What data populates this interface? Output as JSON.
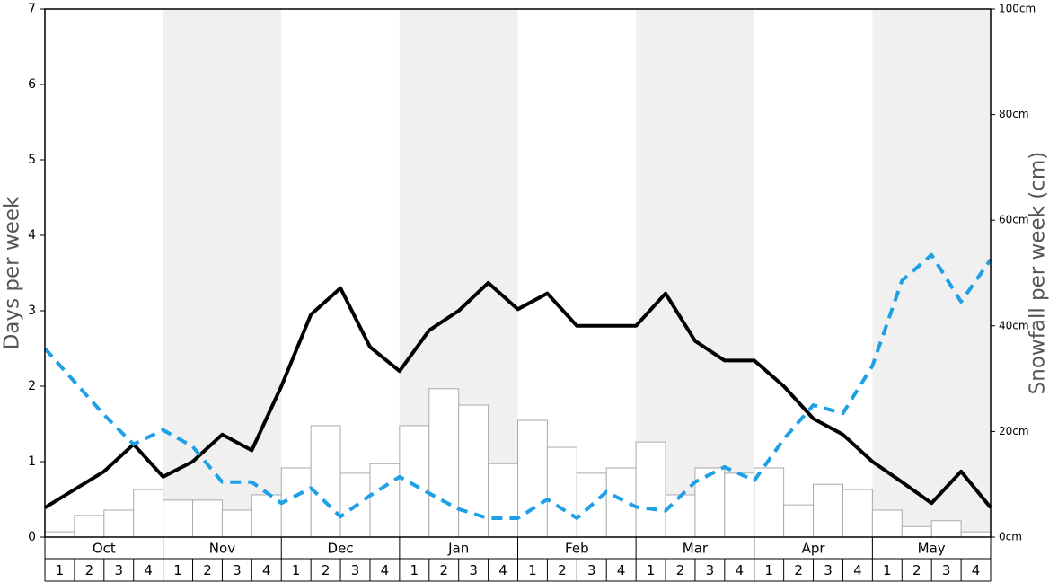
{
  "chart_data": {
    "type": "combo",
    "ylabel": "Days per week",
    "y2label": "Snowfall per week (cm)",
    "ylim": [
      0,
      7
    ],
    "yticks": [
      0,
      1,
      2,
      3,
      4,
      5,
      6,
      7
    ],
    "y2lim": [
      0,
      100
    ],
    "y2ticks": [
      {
        "value": 0,
        "label": "0cm"
      },
      {
        "value": 20,
        "label": "20cm"
      },
      {
        "value": 40,
        "label": "40cm"
      },
      {
        "value": 60,
        "label": "60cm"
      },
      {
        "value": 80,
        "label": "80cm"
      },
      {
        "value": 100,
        "label": "100cm"
      }
    ],
    "xlim": [
      0,
      32
    ],
    "months": [
      "Oct",
      "Nov",
      "Dec",
      "Jan",
      "Feb",
      "Mar",
      "Apr",
      "May"
    ],
    "categories": [
      "1",
      "2",
      "3",
      "4",
      "1",
      "2",
      "3",
      "4",
      "1",
      "2",
      "3",
      "4",
      "1",
      "2",
      "3",
      "4",
      "1",
      "2",
      "3",
      "4",
      "1",
      "2",
      "3",
      "4",
      "1",
      "2",
      "3",
      "4",
      "1",
      "2",
      "3",
      "4"
    ],
    "series": [
      {
        "type": "bar",
        "axis": "y2",
        "color": "#ffffff",
        "edge": "#aaaaaa",
        "values": [
          1.0,
          4.1,
          5.1,
          9.0,
          7.0,
          7.0,
          5.1,
          8.0,
          13.1,
          21.1,
          12.1,
          13.9,
          21.1,
          28.1,
          25.0,
          13.9,
          22.1,
          17.0,
          12.1,
          13.1,
          18.0,
          8.0,
          13.1,
          12.1,
          13.1,
          6.1,
          10.0,
          9.0,
          5.1,
          2.0,
          3.1,
          1.0
        ]
      },
      {
        "type": "line",
        "axis": "y",
        "color": "#000000",
        "dash": false,
        "x": [
          0,
          1,
          2,
          3,
          4,
          5,
          6,
          7,
          8,
          9,
          10,
          11,
          12,
          13,
          14,
          15,
          16,
          17,
          18,
          19,
          20,
          21,
          22,
          23,
          24,
          25,
          26,
          27,
          28,
          29,
          30,
          31,
          32
        ],
        "values": [
          0.39,
          0.63,
          0.87,
          1.23,
          0.8,
          1.0,
          1.36,
          1.15,
          2.0,
          2.95,
          3.3,
          2.52,
          2.2,
          2.74,
          3.0,
          3.37,
          3.02,
          3.23,
          2.8,
          2.8,
          2.8,
          3.23,
          2.6,
          2.34,
          2.34,
          2.0,
          1.57,
          1.36,
          1.0,
          0.73,
          0.45,
          0.87,
          0.39
        ]
      },
      {
        "type": "line",
        "axis": "y",
        "color": "#1ea0e6",
        "dash": true,
        "x": [
          0,
          1,
          2,
          3,
          4,
          5,
          6,
          7,
          8,
          9,
          10,
          11,
          12,
          13,
          14,
          15,
          16,
          17,
          18,
          19,
          20,
          21,
          22,
          23,
          24,
          25,
          26,
          27,
          28,
          29,
          30,
          31,
          32
        ],
        "values": [
          2.5,
          2.06,
          1.62,
          1.23,
          1.42,
          1.2,
          0.73,
          0.73,
          0.45,
          0.65,
          0.27,
          0.55,
          0.8,
          0.58,
          0.37,
          0.25,
          0.25,
          0.5,
          0.25,
          0.6,
          0.4,
          0.35,
          0.73,
          0.93,
          0.75,
          1.3,
          1.75,
          1.64,
          2.27,
          3.4,
          3.74,
          3.12,
          3.68
        ]
      }
    ],
    "shade": "#f0f0f0"
  }
}
